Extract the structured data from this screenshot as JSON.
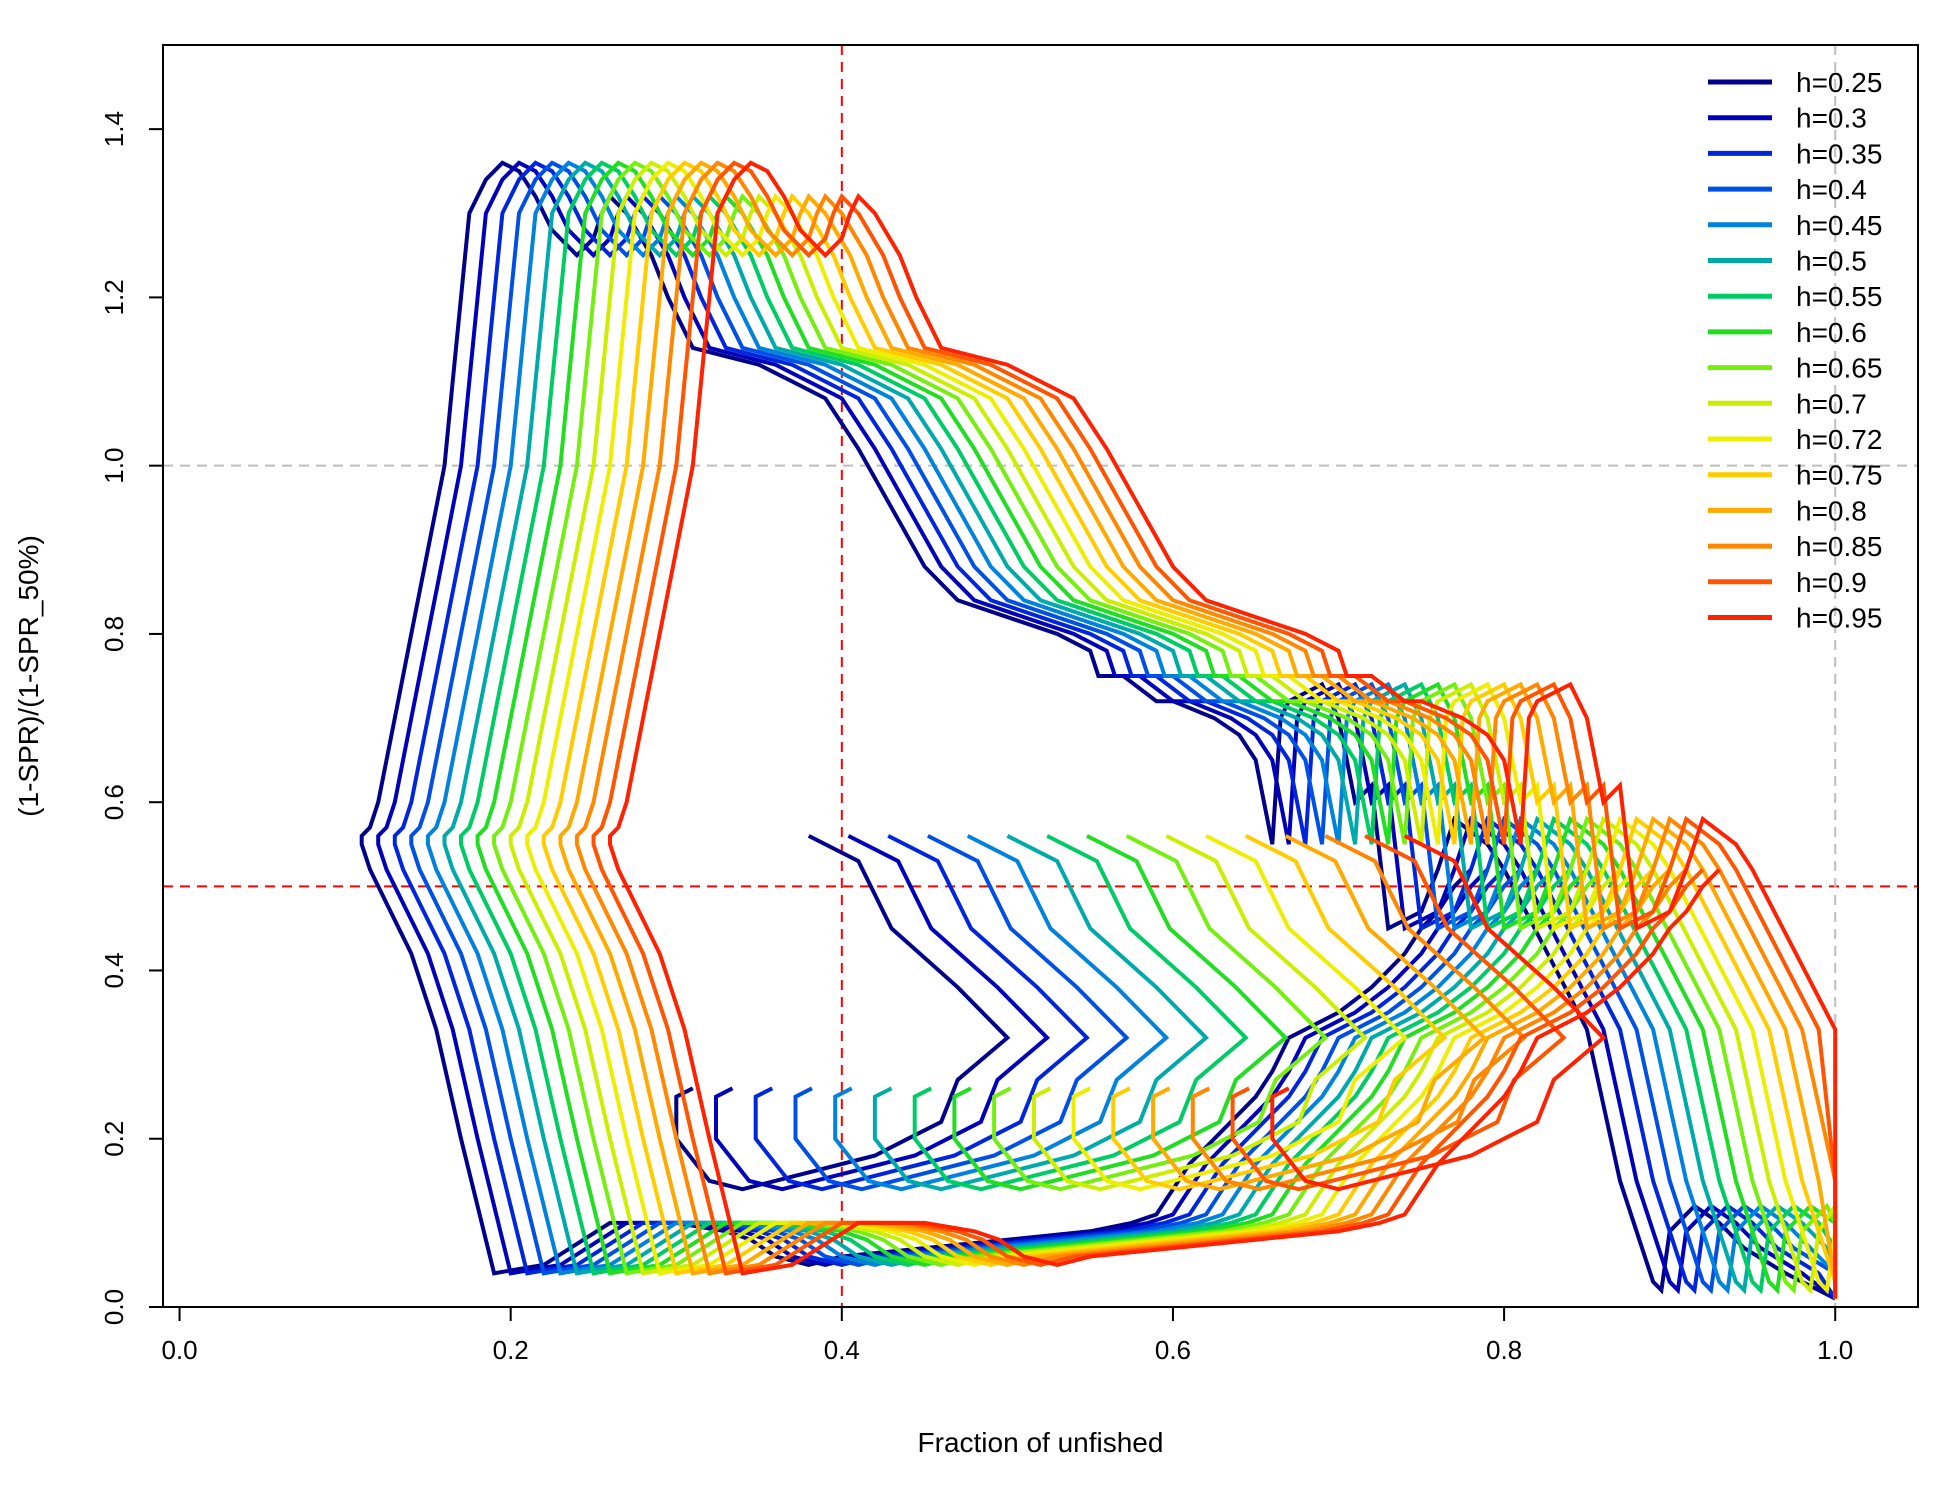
{
  "chart_data": {
    "type": "line",
    "title": "",
    "xlabel": "Fraction of unfished",
    "ylabel": "(1-SPR)/(1-SPR_50%)",
    "xlim": [
      -0.01,
      1.05
    ],
    "ylim": [
      0.0,
      1.5
    ],
    "x_ticks": [
      0.0,
      0.2,
      0.4,
      0.6,
      0.8,
      1.0
    ],
    "x_tick_labels": [
      "0.0",
      "0.2",
      "0.4",
      "0.6",
      "0.8",
      "1.0"
    ],
    "y_ticks": [
      0.0,
      0.2,
      0.4,
      0.6,
      0.8,
      1.0,
      1.2,
      1.4
    ],
    "y_tick_labels": [
      "0.0",
      "0.2",
      "0.4",
      "0.6",
      "0.8",
      "1.0",
      "1.2",
      "1.4"
    ],
    "grid": false,
    "legend_position": "top-right",
    "reference_lines": [
      {
        "orientation": "vertical",
        "value": 0.4,
        "color": "#ff0000",
        "style": "dashed"
      },
      {
        "orientation": "horizontal",
        "value": 0.5,
        "color": "#ff0000",
        "style": "dashed"
      },
      {
        "orientation": "horizontal",
        "value": 1.0,
        "color": "#bebebe",
        "style": "dashed"
      },
      {
        "orientation": "vertical",
        "value": 1.0,
        "color": "#bebebe",
        "style": "dashed"
      }
    ],
    "base_curve": {
      "x": [
        1.0,
        0.97,
        0.945,
        0.93,
        0.915,
        0.9,
        0.895,
        0.89,
        0.87,
        0.85,
        0.8,
        0.79,
        0.77,
        0.76,
        0.75,
        0.73,
        0.72,
        0.71,
        0.7,
        0.69,
        0.67,
        0.665,
        0.66,
        0.655,
        0.65,
        0.64,
        0.625,
        0.6,
        0.59,
        0.57,
        0.555,
        0.55,
        0.53,
        0.5,
        0.47,
        0.45,
        0.43,
        0.41,
        0.39,
        0.37,
        0.35,
        0.33,
        0.31,
        0.295,
        0.285,
        0.27,
        0.26,
        0.255,
        0.25,
        0.24,
        0.225,
        0.215,
        0.205,
        0.195,
        0.185,
        0.175,
        0.17,
        0.165,
        0.16,
        0.15,
        0.14,
        0.13,
        0.12,
        0.115,
        0.11,
        0.11,
        0.115,
        0.125,
        0.14,
        0.155,
        0.17,
        0.19,
        0.22,
        0.26,
        0.3,
        0.33,
        0.345,
        0.36,
        0.38,
        0.4,
        0.45,
        0.5,
        0.55,
        0.575,
        0.59,
        0.6,
        0.61,
        0.635,
        0.65,
        0.66,
        0.665,
        0.67,
        0.7,
        0.72,
        0.73,
        0.74,
        0.75,
        0.76,
        0.77,
        0.78
      ],
      "y": [
        0.01,
        0.04,
        0.07,
        0.1,
        0.12,
        0.09,
        0.02,
        0.03,
        0.15,
        0.33,
        0.52,
        0.55,
        0.58,
        0.52,
        0.47,
        0.45,
        0.62,
        0.6,
        0.7,
        0.74,
        0.72,
        0.7,
        0.55,
        0.6,
        0.65,
        0.68,
        0.7,
        0.72,
        0.72,
        0.75,
        0.75,
        0.78,
        0.8,
        0.82,
        0.84,
        0.88,
        0.95,
        1.02,
        1.08,
        1.1,
        1.12,
        1.13,
        1.14,
        1.2,
        1.25,
        1.3,
        1.32,
        1.3,
        1.27,
        1.25,
        1.28,
        1.32,
        1.35,
        1.36,
        1.34,
        1.3,
        1.2,
        1.1,
        1.0,
        0.9,
        0.8,
        0.7,
        0.6,
        0.57,
        0.56,
        0.55,
        0.52,
        0.48,
        0.42,
        0.33,
        0.2,
        0.04,
        0.05,
        0.1,
        0.1,
        0.09,
        0.08,
        0.06,
        0.05,
        0.06,
        0.07,
        0.08,
        0.09,
        0.1,
        0.11,
        0.14,
        0.17,
        0.22,
        0.25,
        0.28,
        0.3,
        0.32,
        0.35,
        0.38,
        0.4,
        0.42,
        0.45,
        0.47,
        0.5,
        0.52
      ]
    },
    "series_offsets": [
      0.0,
      0.01,
      0.02,
      0.03,
      0.04,
      0.05,
      0.06,
      0.07,
      0.08,
      0.09,
      0.1,
      0.11,
      0.12,
      0.13,
      0.14,
      0.15
    ],
    "series": [
      {
        "name": "h=0.25",
        "color": "#00008b"
      },
      {
        "name": "h=0.3",
        "color": "#0000bb"
      },
      {
        "name": "h=0.35",
        "color": "#0026dd"
      },
      {
        "name": "h=0.4",
        "color": "#0050e6"
      },
      {
        "name": "h=0.45",
        "color": "#0082dd"
      },
      {
        "name": "h=0.5",
        "color": "#00aaaa"
      },
      {
        "name": "h=0.55",
        "color": "#00cc66"
      },
      {
        "name": "h=0.6",
        "color": "#22dd22"
      },
      {
        "name": "h=0.65",
        "color": "#77ee11"
      },
      {
        "name": "h=0.7",
        "color": "#ccee00"
      },
      {
        "name": "h=0.72",
        "color": "#eeee00"
      },
      {
        "name": "h=0.75",
        "color": "#ffcc00"
      },
      {
        "name": "h=0.8",
        "color": "#ffaa00"
      },
      {
        "name": "h=0.85",
        "color": "#ff8800"
      },
      {
        "name": "h=0.9",
        "color": "#ff5500"
      },
      {
        "name": "h=0.95",
        "color": "#ff2200"
      }
    ],
    "lower_branch": {
      "x": [
        0.38,
        0.41,
        0.43,
        0.47,
        0.5,
        0.47,
        0.46,
        0.44,
        0.42,
        0.4,
        0.38,
        0.36,
        0.34,
        0.32,
        0.3,
        0.3,
        0.31
      ],
      "y": [
        0.56,
        0.53,
        0.45,
        0.38,
        0.32,
        0.27,
        0.22,
        0.2,
        0.18,
        0.17,
        0.16,
        0.15,
        0.14,
        0.15,
        0.2,
        0.25,
        0.26
      ]
    }
  }
}
